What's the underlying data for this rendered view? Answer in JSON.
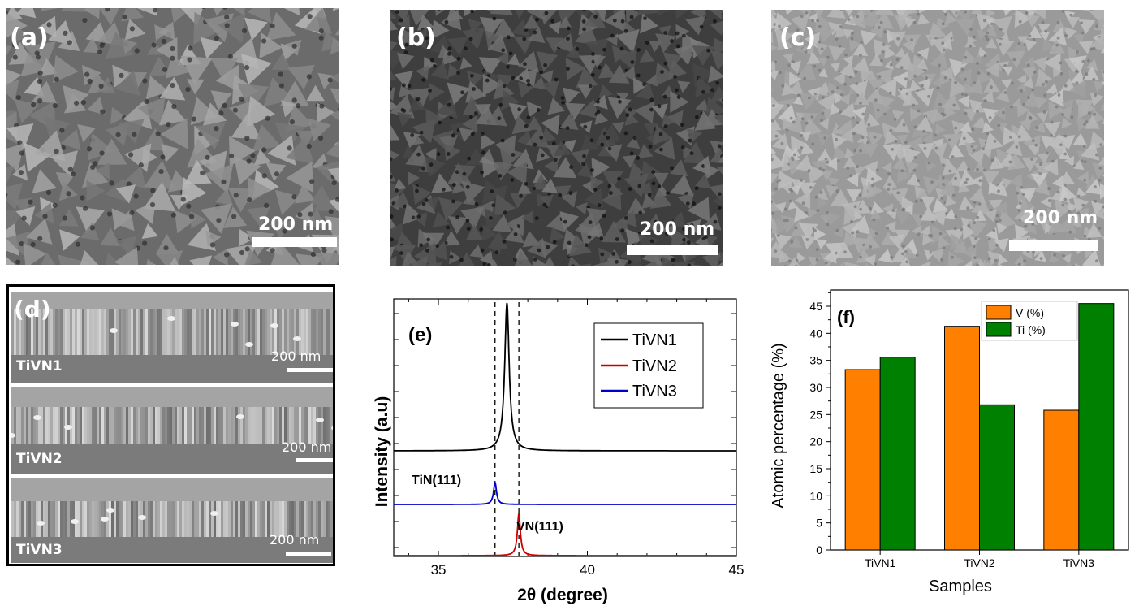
{
  "sem_panels": [
    {
      "label": "(a)",
      "scale": "200 nm",
      "tone": "#6b6b6b",
      "grain": 26,
      "contrast": 1.0
    },
    {
      "label": "(b)",
      "scale": "200 nm",
      "tone": "#3e3e3e",
      "grain": 20,
      "contrast": 0.8
    },
    {
      "label": "(c)",
      "scale": "200 nm",
      "tone": "#9a9a9a",
      "grain": 16,
      "contrast": 0.6
    }
  ],
  "cross_section": {
    "label": "(d)",
    "strips": [
      {
        "name": "TiVN1",
        "scale": "200 nm"
      },
      {
        "name": "TiVN2",
        "scale": "200 nm"
      },
      {
        "name": "TiVN3",
        "scale": "200 nm"
      }
    ]
  },
  "xrd": {
    "panel_label": "(e)",
    "xlabel": "2θ (degree)",
    "ylabel": "Intensity (a.u)",
    "xlim": [
      33.5,
      45
    ],
    "xticks": [
      "35",
      "40",
      "45"
    ],
    "legend": [
      {
        "name": "TiVN1",
        "color": "#000000"
      },
      {
        "name": "TiVN2",
        "color": "#cc0000"
      },
      {
        "name": "TiVN3",
        "color": "#0000cc"
      }
    ],
    "annotations": [
      "TiN(111)",
      "VN(111)"
    ],
    "reference_lines": [
      36.9,
      37.7
    ],
    "peaks": {
      "TiVN1": 37.3,
      "TiVN2": 37.7,
      "TiVN3": 36.9
    }
  },
  "chart_data": {
    "type": "bar",
    "panel_label": "(f)",
    "categories": [
      "TiVN1",
      "TiVN2",
      "TiVN3"
    ],
    "series": [
      {
        "name": "V (%)",
        "color": "#ff8000",
        "values": [
          33.3,
          41.3,
          25.8
        ]
      },
      {
        "name": "Ti (%)",
        "color": "#008000",
        "values": [
          35.6,
          26.8,
          45.5
        ]
      }
    ],
    "xlabel": "Samples",
    "ylabel": "Atomic percentage (%)",
    "ylim": [
      0,
      48
    ],
    "yticks": [
      "0",
      "5",
      "10",
      "15",
      "20",
      "25",
      "30",
      "35",
      "40",
      "45"
    ],
    "legend_position": "top-right"
  }
}
